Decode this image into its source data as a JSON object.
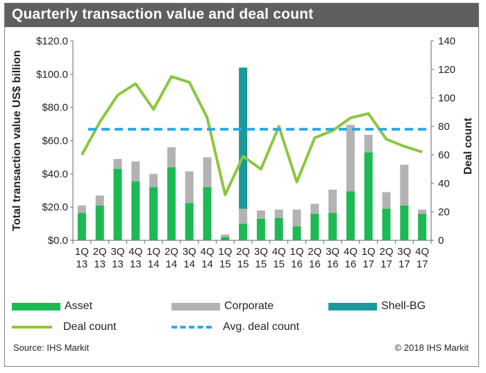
{
  "header": {
    "title": "Quarterly transaction value and deal count"
  },
  "chart_data": {
    "type": "bar",
    "title": "Quarterly transaction value and deal count",
    "categories": [
      [
        "1Q",
        "13"
      ],
      [
        "2Q",
        "13"
      ],
      [
        "3Q",
        "13"
      ],
      [
        "4Q",
        "13"
      ],
      [
        "1Q",
        "14"
      ],
      [
        "2Q",
        "14"
      ],
      [
        "3Q",
        "14"
      ],
      [
        "4Q",
        "14"
      ],
      [
        "1Q",
        "15"
      ],
      [
        "2Q",
        "15"
      ],
      [
        "3Q",
        "15"
      ],
      [
        "4Q",
        "15"
      ],
      [
        "1Q",
        "16"
      ],
      [
        "2Q",
        "16"
      ],
      [
        "3Q",
        "16"
      ],
      [
        "4Q",
        "16"
      ],
      [
        "1Q",
        "17"
      ],
      [
        "2Q",
        "17"
      ],
      [
        "3Q",
        "17"
      ],
      [
        "4Q",
        "17"
      ]
    ],
    "ylabel": "Total transaction value US$ billion",
    "y2label": "Deal count",
    "ylim": [
      0,
      120
    ],
    "y2lim": [
      0,
      140
    ],
    "yticks": [
      "$0.0",
      "$20.0",
      "$40.0",
      "$60.0",
      "$80.0",
      "$100.0",
      "$120.0"
    ],
    "y2ticks": [
      "0",
      "20",
      "40",
      "60",
      "80",
      "100",
      "120",
      "140"
    ],
    "stacked": true,
    "series": [
      {
        "name": "Asset",
        "kind": "bar",
        "color": "#1db954",
        "values": [
          16.5,
          21,
          43,
          35.5,
          32,
          44,
          22.5,
          32,
          2,
          10,
          13,
          13.5,
          8.5,
          16,
          16.5,
          29.5,
          53,
          19,
          21,
          16
        ]
      },
      {
        "name": "Corporate",
        "kind": "bar",
        "color": "#b3b3b3",
        "values": [
          4.5,
          6,
          6,
          12,
          8,
          12,
          19,
          18,
          1.5,
          9,
          5,
          5,
          10,
          6,
          14,
          40,
          10.5,
          10,
          24.5,
          2.5
        ]
      },
      {
        "name": "Shell-BG",
        "kind": "bar",
        "color": "#1a9a9a",
        "values": [
          0,
          0,
          0,
          0,
          0,
          0,
          0,
          0,
          0,
          85,
          0,
          0,
          0,
          0,
          0,
          0,
          0,
          0,
          0,
          0
        ]
      },
      {
        "name": "Deal count",
        "kind": "line",
        "axis": "right",
        "color": "#8cc63f",
        "values": [
          60,
          83,
          102,
          110,
          92,
          115,
          111,
          86,
          32,
          59,
          50,
          80,
          41,
          72,
          77,
          86,
          89,
          71,
          66,
          62
        ]
      },
      {
        "name": "Avg. deal count",
        "kind": "line",
        "axis": "right",
        "style": "dashed",
        "color": "#29abe2",
        "values": [
          78,
          78,
          78,
          78,
          78,
          78,
          78,
          78,
          78,
          78,
          78,
          78,
          78,
          78,
          78,
          78,
          78,
          78,
          78,
          78
        ]
      }
    ],
    "legend": "bottom",
    "grid": false
  },
  "legend": {
    "asset": "Asset",
    "corporate": "Corporate",
    "shell": "Shell-BG",
    "deal_count": "Deal count",
    "avg_deal_count": "Avg. deal count"
  },
  "footer": {
    "source": "Source:  IHS Markit",
    "copyright": "© 2018  IHS Markit"
  }
}
